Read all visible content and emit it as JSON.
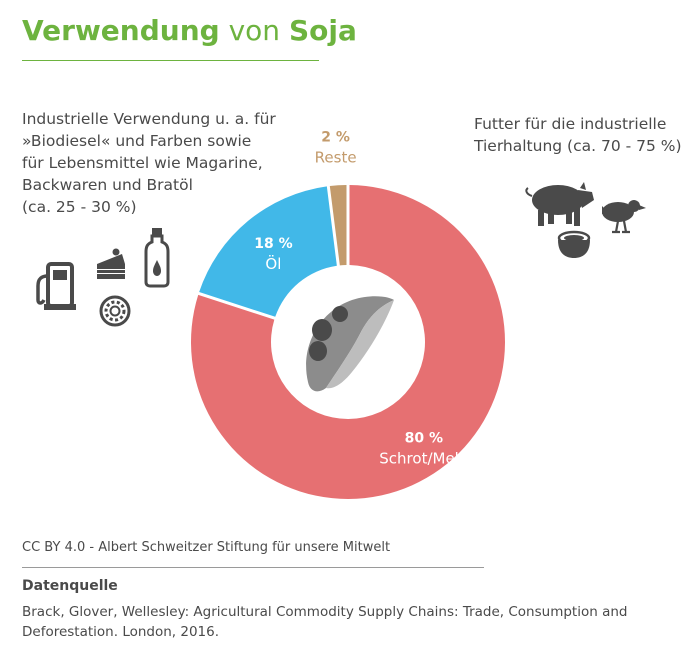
{
  "title": {
    "part1": "Verwendung",
    "part2": " von ",
    "part3": "Soja"
  },
  "annotations": {
    "left": [
      "Industrielle Verwendung u. a. für",
      "»Biodiesel« und Farben sowie",
      "für Lebensmittel wie Magarine,",
      "Backwaren und Bratöl",
      "(ca. 25 - 30 %)"
    ],
    "right": [
      "Futter für die industrielle",
      "Tierhaltung (ca. 70 - 75 %)"
    ]
  },
  "chart_data": {
    "type": "pie",
    "donut": true,
    "slices": [
      {
        "label": "Schrot/Mehl",
        "value": 80,
        "value_label": "80 %",
        "color": "#e67072"
      },
      {
        "label": "Öl",
        "value": 18,
        "value_label": "18 %",
        "color": "#41b8e8"
      },
      {
        "label": "Reste",
        "value": 2,
        "value_label": "2 %",
        "color": "#c39b6c"
      }
    ]
  },
  "icons": [
    "fuel-pump-icon",
    "cake-icon",
    "oil-bottle-icon",
    "donut-icon",
    "pig-icon",
    "chicken-icon",
    "feed-bowl-icon",
    "soybean-pod-icon"
  ],
  "footer": {
    "license": "CC BY 4.0 -  Albert Schweitzer Stiftung für unsere Mitwelt",
    "source_heading": "Datenquelle",
    "source_text": "Brack, Glover, Wellesley: Agricultural Commodity Supply Chains: Trade, Consumption and Deforestation. London, 2016."
  }
}
